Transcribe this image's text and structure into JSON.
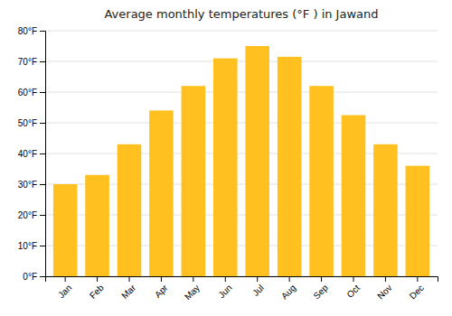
{
  "chart_data": {
    "type": "bar",
    "title": "Average monthly temperatures (°F ) in Jawand",
    "categories": [
      "Jan",
      "Feb",
      "Mar",
      "Apr",
      "May",
      "Jun",
      "Jul",
      "Aug",
      "Sep",
      "Oct",
      "Nov",
      "Dec"
    ],
    "values": [
      30,
      33,
      43,
      54,
      62,
      71,
      75,
      71.5,
      62,
      52.5,
      43,
      36
    ],
    "color": "#FFC020",
    "ylim": [
      0,
      80
    ],
    "yticks": [
      {
        "value": 0,
        "label": "0°F"
      },
      {
        "value": 10,
        "label": "10°F"
      },
      {
        "value": 20,
        "label": "20°F"
      },
      {
        "value": 30,
        "label": "30°F"
      },
      {
        "value": 40,
        "label": "40°F"
      },
      {
        "value": 50,
        "label": "50°F"
      },
      {
        "value": 60,
        "label": "60°F"
      },
      {
        "value": 70,
        "label": "70°F"
      },
      {
        "value": 80,
        "label": "80°F"
      }
    ],
    "grid": true
  }
}
